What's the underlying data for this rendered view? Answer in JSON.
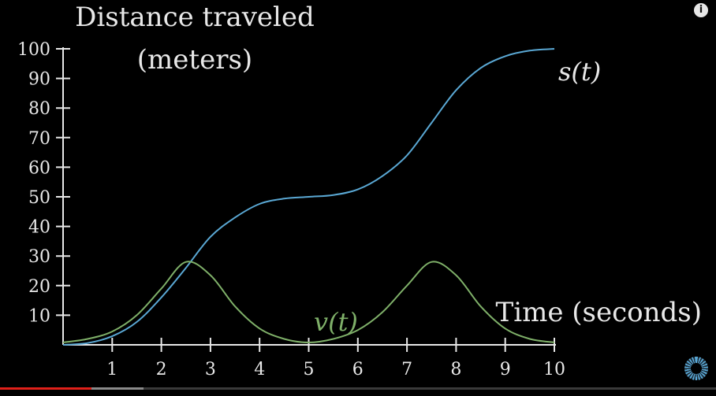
{
  "chart_data": {
    "type": "line",
    "title": "",
    "ylabel_lines": [
      "Distance traveled",
      "(meters)"
    ],
    "xlabel": "Time (seconds)",
    "xlim": [
      0,
      10
    ],
    "ylim": [
      0,
      100
    ],
    "xticks": [
      1,
      2,
      3,
      4,
      5,
      6,
      7,
      8,
      9,
      10
    ],
    "yticks": [
      10,
      20,
      30,
      40,
      50,
      60,
      70,
      80,
      90,
      100
    ],
    "grid": false,
    "series": [
      {
        "name": "s(t)",
        "color": "#5aa8d4",
        "x": [
          0,
          0.5,
          1,
          1.5,
          2,
          2.5,
          3,
          3.5,
          4,
          4.5,
          5,
          5.5,
          6,
          6.5,
          7,
          7.5,
          8,
          8.5,
          9,
          9.5,
          10
        ],
        "y": [
          0,
          0.6,
          2.9,
          7.7,
          16,
          26,
          36.5,
          43,
          47.6,
          49.4,
          50,
          50.6,
          52.5,
          57,
          64,
          75,
          86,
          93.5,
          97.5,
          99.4,
          100
        ]
      },
      {
        "name": "v(t)",
        "color": "#7fb069",
        "x": [
          0,
          0.5,
          1,
          1.5,
          2,
          2.5,
          3,
          3.5,
          4,
          4.5,
          5,
          5.5,
          6,
          6.5,
          7,
          7.5,
          8,
          8.5,
          9,
          9.5,
          10
        ],
        "y": [
          0.8,
          2.0,
          4.5,
          10,
          19,
          28,
          23.5,
          13,
          5.5,
          2,
          0.8,
          2,
          5,
          11,
          20,
          28,
          23.5,
          13,
          5.5,
          2,
          0.8
        ]
      }
    ]
  },
  "player": {
    "info_icon": "info-icon",
    "info_glyph": "i",
    "loading_icon": "loading-spinner-icon",
    "progress_played": 0.128,
    "progress_buffered": 0.2,
    "colors": {
      "played": "#e0201a",
      "buffered": "#8a8a8a",
      "track": "#3a3a3a"
    }
  }
}
